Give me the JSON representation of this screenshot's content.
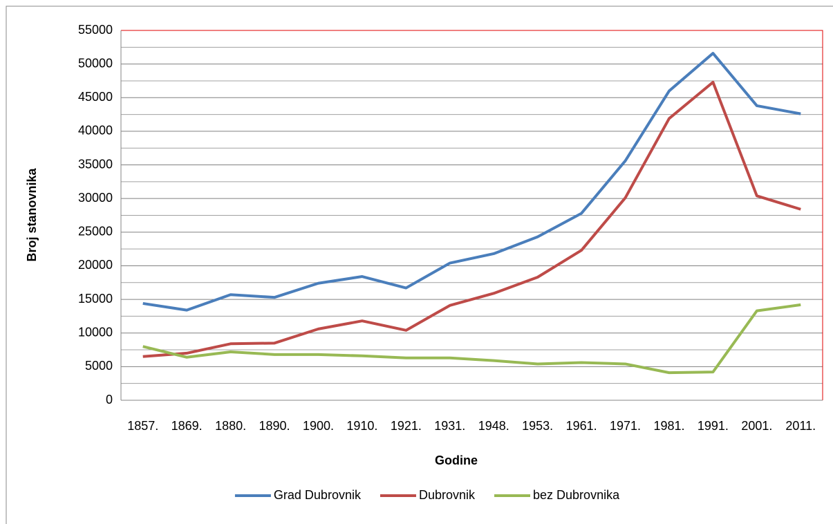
{
  "chart_data": {
    "type": "line",
    "x_label": "Godine",
    "y_label": "Broj stanovnika",
    "categories": [
      "1857.",
      "1869.",
      "1880.",
      "1890.",
      "1900.",
      "1910.",
      "1921.",
      "1931.",
      "1948.",
      "1953.",
      "1961.",
      "1971.",
      "1981.",
      "1991.",
      "2001.",
      "2011."
    ],
    "series": [
      {
        "name": "Grad Dubrovnik",
        "color": "#4a7ebb",
        "values": [
          14400,
          13400,
          15700,
          15300,
          17400,
          18400,
          16700,
          20400,
          21800,
          24300,
          27800,
          35600,
          46000,
          51600,
          43800,
          42600
        ]
      },
      {
        "name": "Dubrovnik",
        "color": "#be4b48",
        "values": [
          6500,
          7000,
          8400,
          8500,
          10600,
          11800,
          10400,
          14100,
          15900,
          18300,
          22300,
          30100,
          41900,
          47300,
          30400,
          28400
        ]
      },
      {
        "name": "bez Dubrovnika",
        "color": "#98b954",
        "values": [
          8000,
          6400,
          7200,
          6800,
          6800,
          6600,
          6300,
          6300,
          5900,
          5400,
          5600,
          5400,
          4100,
          4200,
          13300,
          14200
        ]
      }
    ],
    "ylim": [
      0,
      55000
    ],
    "yticks": [
      0,
      5000,
      10000,
      15000,
      20000,
      25000,
      30000,
      35000,
      40000,
      45000,
      50000,
      55000
    ],
    "yminorticks": [
      2500,
      7500,
      12500,
      17500,
      22500,
      27500,
      32500,
      37500,
      42500,
      47500,
      52500
    ],
    "grid": true,
    "legend": "bottom"
  }
}
